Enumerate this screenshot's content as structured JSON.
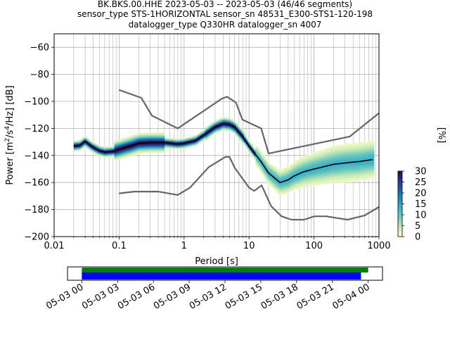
{
  "title_lines": [
    "BK.BKS.00.HHE   2023-05-03 -- 2023-05-03  (46/46 segments)",
    "sensor_type STS-1HORIZONTAL sensor_sn 48531_E300-STS1-120-198",
    "datalogger_type Q330HR datalogger_sn 4007"
  ],
  "chart_data": {
    "type": "heatmap",
    "title": "BK.BKS.00.HHE   2023-05-03 -- 2023-05-03  (46/46 segments)",
    "xlabel": "Period [s]",
    "ylabel": "Power [m²/s⁴/Hz] [dB]",
    "xscale": "log",
    "xlim": [
      0.01,
      1000
    ],
    "ylim": [
      -200,
      -50
    ],
    "grid": true,
    "x_ticks": [
      0.01,
      0.1,
      1,
      10,
      100,
      1000
    ],
    "x_tick_labels": [
      "0.01",
      "0.1",
      "1",
      "10",
      "100",
      "1000"
    ],
    "y_ticks": [
      -200,
      -180,
      -160,
      -140,
      -120,
      -100,
      -80,
      -60
    ],
    "y_tick_labels": [
      "−200",
      "−180",
      "−160",
      "−140",
      "−120",
      "−100",
      "−80",
      "−60"
    ],
    "colorbar": {
      "label": "[%]",
      "range": [
        0,
        30
      ],
      "ticks": [
        0,
        5,
        10,
        15,
        20,
        25,
        30
      ],
      "tick_labels": [
        "0",
        "5",
        "10",
        "15",
        "20",
        "25",
        "30"
      ],
      "colormap": [
        "#ffffcc",
        "#c7e9b4",
        "#7fcdbb",
        "#41b6c4",
        "#1d91c0",
        "#225ea8",
        "#253494",
        "#2d0b3e"
      ]
    },
    "mean_psd": {
      "color": "#000000",
      "x": [
        0.02,
        0.025,
        0.03,
        0.035,
        0.04,
        0.05,
        0.06,
        0.08,
        0.1,
        0.15,
        0.2,
        0.3,
        0.5,
        0.8,
        1,
        1.5,
        2,
        3,
        4,
        5,
        6,
        8,
        10,
        15,
        20,
        30,
        40,
        50,
        70,
        100,
        150,
        200,
        300,
        500,
        800
      ],
      "y": [
        -133,
        -132.5,
        -129.5,
        -132,
        -134,
        -136.5,
        -137.5,
        -137,
        -135.5,
        -133,
        -131,
        -130.5,
        -130.5,
        -131.5,
        -131,
        -129,
        -125,
        -119,
        -116.5,
        -117,
        -119,
        -126,
        -133,
        -144,
        -153,
        -160,
        -158,
        -155,
        -152,
        -150,
        -148,
        -146.5,
        -145.5,
        -144.5,
        -143
      ]
    },
    "noise_model_high": {
      "color": "#666666",
      "x": [
        0.1,
        0.22,
        0.32,
        0.8,
        3.8,
        4.6,
        6.3,
        7.9,
        15.4,
        20,
        354.8,
        10000
      ],
      "y": [
        -91.5,
        -97.4,
        -110.5,
        -120,
        -98,
        -96.5,
        -101,
        -113.5,
        -120,
        -138.5,
        -126,
        -70
      ]
    },
    "noise_model_low": {
      "color": "#666666",
      "x": [
        0.1,
        0.17,
        0.4,
        0.8,
        1.24,
        2.4,
        4.3,
        5,
        6,
        10,
        12,
        15.6,
        21.9,
        31.6,
        45,
        70,
        101,
        154,
        328,
        600,
        1000
      ],
      "y": [
        -168,
        -166.7,
        -166.7,
        -169.2,
        -163.7,
        -148.6,
        -141.1,
        -141.1,
        -149,
        -163.8,
        -166.2,
        -162.1,
        -177.5,
        -185,
        -187.5,
        -187.5,
        -185,
        -185,
        -187.5,
        -184.4,
        -178
      ]
    }
  },
  "time_axis": {
    "tick_labels": [
      "05-03 00",
      "05-03 03",
      "05-03 06",
      "05-03 09",
      "05-03 12",
      "05-03 15",
      "05-03 18",
      "05-03 21",
      "05-04 00"
    ],
    "tick_hours": [
      0,
      3,
      6,
      9,
      12,
      15,
      18,
      21,
      24
    ],
    "range_hours": [
      -1.2,
      25.2
    ],
    "coverage_color": "#008000",
    "used_color": "#0000ff",
    "coverage_hours": [
      0,
      24.0
    ],
    "used_hours": [
      0,
      23.4
    ]
  }
}
